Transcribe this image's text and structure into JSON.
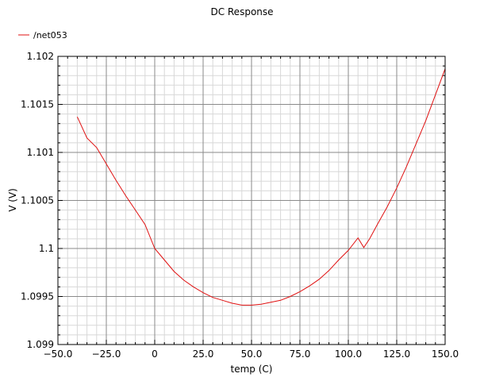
{
  "chart_data": {
    "type": "line",
    "title": "DC Response",
    "xlabel": "temp (C)",
    "ylabel": "V (V)",
    "xlim": [
      -50,
      150
    ],
    "ylim": [
      1.099,
      1.102
    ],
    "x_ticks": [
      -50,
      -25,
      0,
      25,
      50,
      75,
      100,
      125,
      150
    ],
    "x_tick_labels": [
      "−50.0",
      "−25.0",
      "0",
      "25.0",
      "50.0",
      "75.0",
      "100.0",
      "125.0",
      "150.0"
    ],
    "y_ticks": [
      1.099,
      1.0995,
      1.1,
      1.1005,
      1.101,
      1.1015,
      1.102
    ],
    "y_tick_labels": [
      "1.099",
      "1.0995",
      "1.1",
      "1.1005",
      "1.101",
      "1.1015",
      "1.102"
    ],
    "grid": true,
    "legend_position": "top-left",
    "series": [
      {
        "name": "/net053",
        "color": "#e01010",
        "x": [
          -40,
          -35,
          -30,
          -25,
          -20,
          -15,
          -10,
          -5,
          0,
          5,
          10,
          15,
          20,
          25,
          30,
          35,
          40,
          45,
          50,
          55,
          60,
          65,
          70,
          75,
          80,
          85,
          90,
          95,
          100,
          105,
          108,
          111,
          115,
          120,
          125,
          130,
          135,
          140,
          145,
          150
        ],
        "y": [
          1.10137,
          1.10115,
          1.10105,
          1.10088,
          1.10071,
          1.10055,
          1.1004,
          1.10025,
          1.1,
          1.09988,
          1.09976,
          1.09967,
          1.0996,
          1.09954,
          1.09949,
          1.09946,
          1.09943,
          1.09941,
          1.09941,
          1.09942,
          1.09944,
          1.09946,
          1.0995,
          1.09955,
          1.09961,
          1.09968,
          1.09977,
          1.09988,
          1.09998,
          1.10011,
          1.10001,
          1.1001,
          1.10025,
          1.10043,
          1.10063,
          1.10085,
          1.10109,
          1.10133,
          1.1016,
          1.10187
        ]
      }
    ]
  }
}
